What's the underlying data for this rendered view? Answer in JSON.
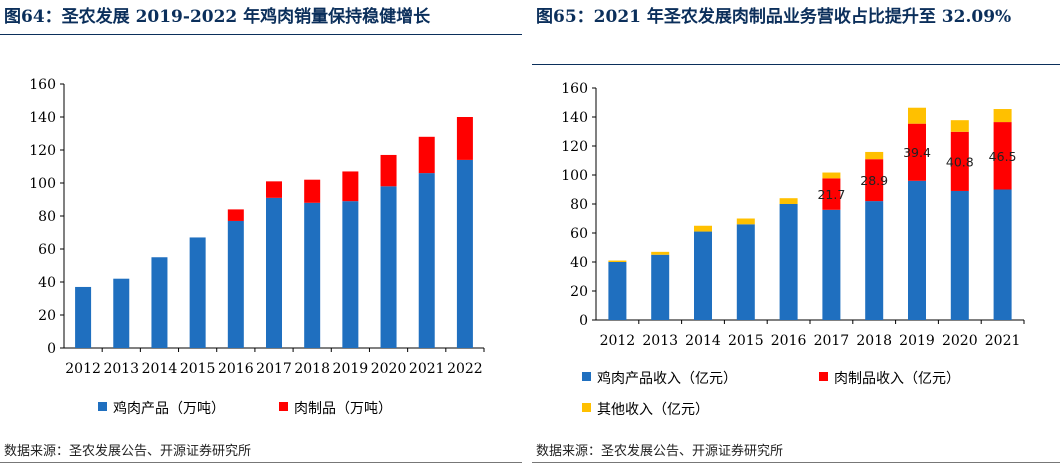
{
  "left": {
    "title": "图64：圣农发展 2019-2022 年鸡肉销量保持稳健增长",
    "source": "数据来源：圣农发展公告、开源证券研究所"
  },
  "right": {
    "title": "图65：2021 年圣农发展肉制品业务营收占比提升至 32.09%",
    "source": "数据来源：圣农发展公告、开源证券研究所"
  },
  "colors": {
    "blue": "#1f6fbf",
    "red": "#ff0000",
    "yellow": "#ffc000",
    "title": "#0b2f5b"
  },
  "chart_data": [
    {
      "type": "bar",
      "stacked": true,
      "categories": [
        "2012",
        "2013",
        "2014",
        "2015",
        "2016",
        "2017",
        "2018",
        "2019",
        "2020",
        "2021",
        "2022"
      ],
      "series": [
        {
          "name": "鸡肉产品（万吨）",
          "color": "#1f6fbf",
          "values": [
            37,
            42,
            55,
            67,
            77,
            91,
            88,
            89,
            98,
            106,
            114
          ]
        },
        {
          "name": "肉制品（万吨）",
          "color": "#ff0000",
          "values": [
            0,
            0,
            0,
            0,
            7,
            10,
            14,
            18,
            19,
            22,
            26
          ]
        }
      ],
      "ylim": [
        0,
        160
      ],
      "yticks": [
        0,
        20,
        40,
        60,
        80,
        100,
        120,
        140,
        160
      ],
      "legend_position": "bottom"
    },
    {
      "type": "bar",
      "stacked": true,
      "categories": [
        "2012",
        "2013",
        "2014",
        "2015",
        "2016",
        "2017",
        "2018",
        "2019",
        "2020",
        "2021"
      ],
      "series": [
        {
          "name": "鸡肉产品收入（亿元）",
          "color": "#1f6fbf",
          "values": [
            40,
            45,
            61,
            66,
            80,
            76,
            82,
            96,
            89,
            90
          ]
        },
        {
          "name": "肉制品收入（亿元）",
          "color": "#ff0000",
          "values": [
            0,
            0,
            0,
            0,
            0,
            21.7,
            28.9,
            39.4,
            40.8,
            46.5
          ]
        },
        {
          "name": "其他收入（亿元）",
          "color": "#ffc000",
          "values": [
            1,
            2,
            4,
            4,
            4,
            4,
            5,
            11,
            8,
            9
          ]
        }
      ],
      "data_labels": [
        "",
        "",
        "",
        "",
        "",
        "21.7",
        "28.9",
        "39.4",
        "40.8",
        "46.5"
      ],
      "ylim": [
        0,
        160
      ],
      "yticks": [
        0,
        20,
        40,
        60,
        80,
        100,
        120,
        140,
        160
      ],
      "legend_position": "bottom"
    }
  ]
}
